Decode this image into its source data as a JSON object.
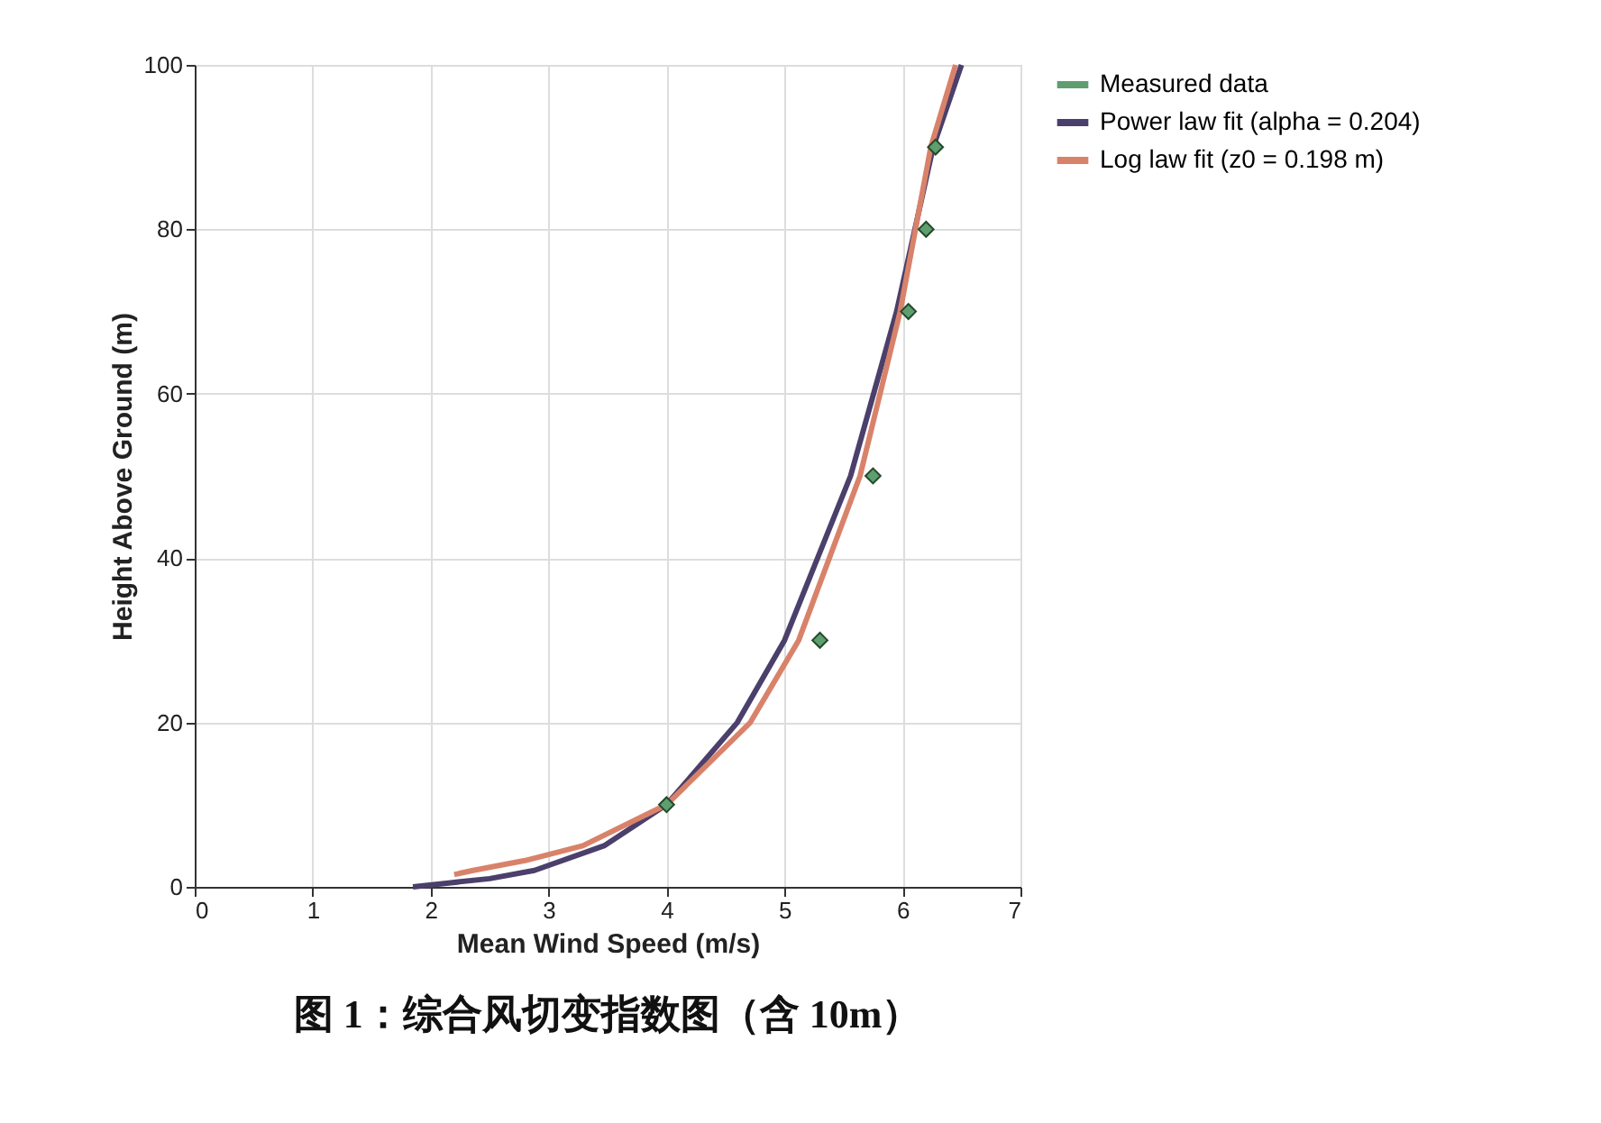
{
  "chart_data": {
    "type": "line",
    "title": "图 1：综合风切变指数图（含 10m）",
    "xlabel": "Mean Wind Speed (m/s)",
    "ylabel": "Height Above Ground (m)",
    "xlim": [
      0,
      7
    ],
    "xticks": [
      0,
      1,
      2,
      3,
      4,
      5,
      6,
      7
    ],
    "ylim": [
      0,
      100
    ],
    "yticks": [
      0,
      20,
      40,
      60,
      80,
      100
    ],
    "grid": true,
    "legend": "right",
    "series": [
      {
        "name": "Measured data",
        "type": "scatter",
        "marker": "diamond",
        "color": "#5f9e6e",
        "x": [
          4.0,
          5.3,
          5.75,
          6.05,
          6.2,
          6.28
        ],
        "values": [
          10,
          30,
          50,
          70,
          80,
          90
        ]
      },
      {
        "name": "Power law fit (alpha = 0.204)",
        "color": "#4b3f6b",
        "x": [
          1.85,
          2.17,
          2.5,
          2.88,
          3.47,
          4.0,
          4.6,
          5.0,
          5.56,
          5.95,
          6.26,
          6.5
        ],
        "values": [
          0,
          0.5,
          1,
          2,
          5,
          10,
          20,
          30,
          50,
          70,
          90,
          100
        ]
      },
      {
        "name": "Log law fit (z0 = 0.198 m)",
        "color": "#d9826a",
        "x": [
          2.2,
          2.36,
          2.8,
          3.29,
          4.0,
          4.71,
          5.12,
          5.64,
          5.98,
          6.24,
          6.45
        ],
        "values": [
          1.5,
          2,
          3.2,
          5,
          10,
          20,
          30,
          50,
          70,
          90,
          100
        ]
      }
    ]
  }
}
